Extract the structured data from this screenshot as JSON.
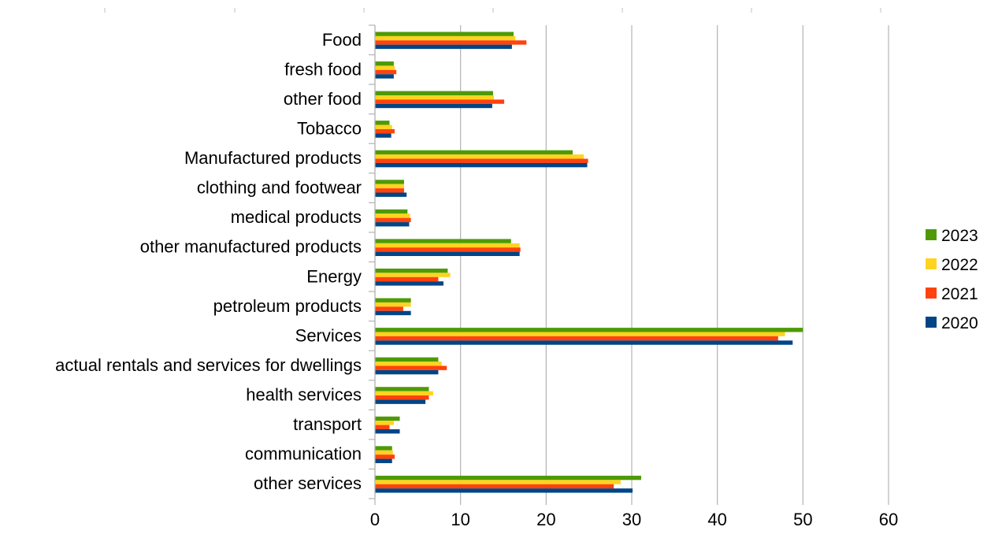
{
  "chart_data": {
    "type": "bar",
    "orientation": "horizontal",
    "title": "",
    "xlabel": "",
    "ylabel": "",
    "xlim": [
      0,
      60
    ],
    "xticks": [
      "0",
      "10",
      "20",
      "30",
      "40",
      "50",
      "60"
    ],
    "grid": true,
    "legend_position": "right",
    "categories": [
      "Food",
      "fresh food",
      "other food",
      "Tobacco",
      "Manufactured products",
      "clothing and footwear",
      "medical products",
      "other manufactured products",
      "Energy",
      "petroleum products",
      "Services",
      "actual rentals and services for dwellings",
      "health services",
      "transport",
      "communication",
      "other services"
    ],
    "series": [
      {
        "name": "2023",
        "color": "#4e9a06",
        "values": [
          16.2,
          2.2,
          13.8,
          1.7,
          23.1,
          3.4,
          3.8,
          15.9,
          8.5,
          4.2,
          50.0,
          7.4,
          6.3,
          2.9,
          2.0,
          31.1
        ]
      },
      {
        "name": "2022",
        "color": "#ffd320",
        "values": [
          16.4,
          2.3,
          13.9,
          2.0,
          24.4,
          3.4,
          4.1,
          16.9,
          8.8,
          4.2,
          47.9,
          7.8,
          6.8,
          2.2,
          2.1,
          28.7
        ]
      },
      {
        "name": "2021",
        "color": "#ff420e",
        "values": [
          17.7,
          2.5,
          15.1,
          2.3,
          24.9,
          3.4,
          4.2,
          17.0,
          7.4,
          3.3,
          47.1,
          8.4,
          6.3,
          1.7,
          2.3,
          27.9
        ]
      },
      {
        "name": "2020",
        "color": "#004586",
        "values": [
          16.0,
          2.2,
          13.7,
          1.9,
          24.8,
          3.7,
          4.0,
          16.9,
          8.0,
          4.2,
          48.8,
          7.4,
          5.9,
          2.9,
          2.0,
          30.1
        ]
      }
    ],
    "legend_order": [
      "2023",
      "2022",
      "2021",
      "2020"
    ]
  }
}
